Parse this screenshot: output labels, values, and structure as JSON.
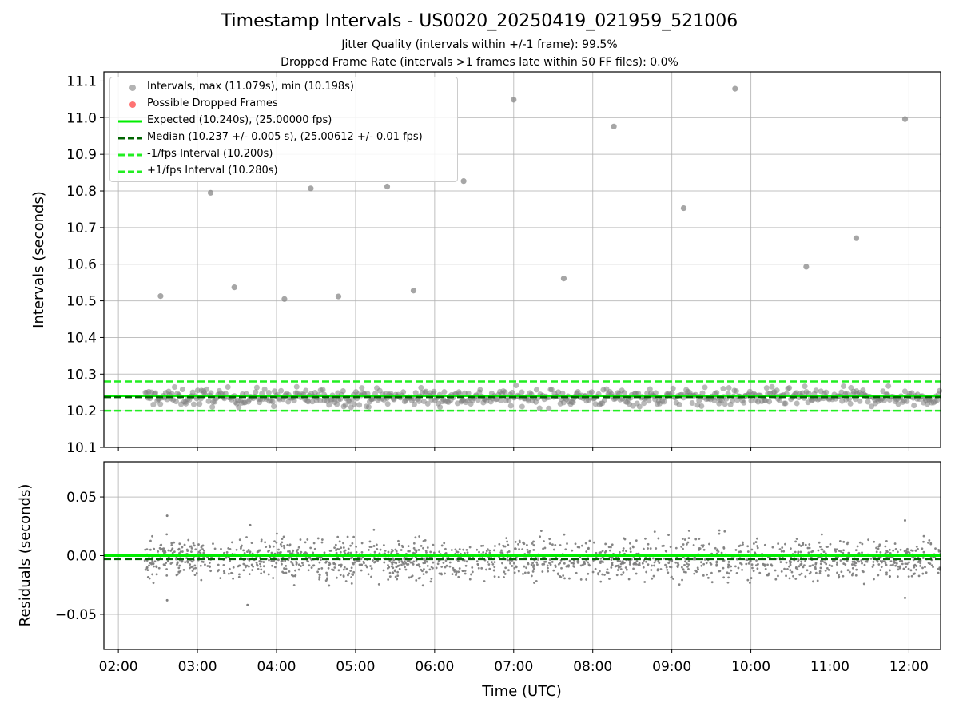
{
  "figure": {
    "title": "Timestamp Intervals - US0020_20250419_021959_521006",
    "subtitle_1": "Jitter Quality (intervals within +/-1 frame): 99.5%",
    "subtitle_2": "Dropped Frame Rate (intervals >1 frames late within 50 FF files): 0.0%"
  },
  "colors": {
    "points": "#808080",
    "dropped": "#ff0000",
    "expected": "#00ee00",
    "median": "#006400",
    "fps_band": "#22ee22",
    "grid": "#b0b0b0"
  },
  "chart_data": [
    {
      "type": "scatter",
      "ylabel": "Intervals (seconds)",
      "xlim": [
        "01:49",
        "12:24"
      ],
      "ylim": [
        10.1,
        11.125
      ],
      "yticks": [
        "10.1",
        "10.2",
        "10.3",
        "10.4",
        "10.5",
        "10.6",
        "10.7",
        "10.8",
        "10.9",
        "11.0",
        "11.1"
      ],
      "grid": true,
      "legend_position": "top-left",
      "legend": [
        "Intervals, max (11.079s), min (10.198s)",
        "Possible Dropped Frames",
        "Expected (10.240s), (25.00000 fps)",
        "Median (10.237 +/- 0.005 s), (25.00612 +/- 0.01 fps)",
        "-1/fps Interval (10.200s)",
        "+1/fps Interval (10.280s)"
      ],
      "reference_lines": {
        "expected": 10.24,
        "median": 10.237,
        "minus_1fps": 10.2,
        "plus_1fps": 10.28
      },
      "points_band": {
        "x_start": "02:20",
        "x_end": "12:24",
        "center": 10.237,
        "spread": 0.025
      },
      "outliers": [
        {
          "x": "02:32",
          "y": 10.513
        },
        {
          "x": "03:10",
          "y": 10.795
        },
        {
          "x": "03:28",
          "y": 10.537
        },
        {
          "x": "04:06",
          "y": 10.505
        },
        {
          "x": "04:26",
          "y": 10.807
        },
        {
          "x": "04:47",
          "y": 10.512
        },
        {
          "x": "05:24",
          "y": 10.812
        },
        {
          "x": "05:44",
          "y": 10.528
        },
        {
          "x": "06:22",
          "y": 10.827
        },
        {
          "x": "07:00",
          "y": 11.049
        },
        {
          "x": "07:38",
          "y": 10.561
        },
        {
          "x": "08:16",
          "y": 10.976
        },
        {
          "x": "09:09",
          "y": 10.753
        },
        {
          "x": "09:48",
          "y": 11.079
        },
        {
          "x": "10:42",
          "y": 10.593
        },
        {
          "x": "11:20",
          "y": 10.671
        },
        {
          "x": "11:57",
          "y": 10.996
        }
      ]
    },
    {
      "type": "scatter",
      "ylabel": "Residuals (seconds)",
      "xlabel": "Time (UTC)",
      "xlim": [
        "01:49",
        "12:24"
      ],
      "ylim": [
        -0.08,
        0.08
      ],
      "yticks": [
        "−0.05",
        "0.00",
        "0.05"
      ],
      "xticks": [
        "02:00",
        "03:00",
        "04:00",
        "05:00",
        "06:00",
        "07:00",
        "08:00",
        "09:00",
        "10:00",
        "11:00",
        "12:00"
      ],
      "grid": true,
      "reference_lines": {
        "expected": 0.0,
        "median": -0.003
      },
      "points_band": {
        "x_start": "02:20",
        "x_end": "12:24",
        "center": -0.003,
        "spread": 0.01
      },
      "extremes": [
        {
          "x": "02:37",
          "y": 0.034
        },
        {
          "x": "02:37",
          "y": -0.038
        },
        {
          "x": "03:38",
          "y": -0.042
        },
        {
          "x": "03:40",
          "y": 0.026
        },
        {
          "x": "11:57",
          "y": 0.03
        },
        {
          "x": "11:57",
          "y": -0.036
        }
      ]
    }
  ]
}
